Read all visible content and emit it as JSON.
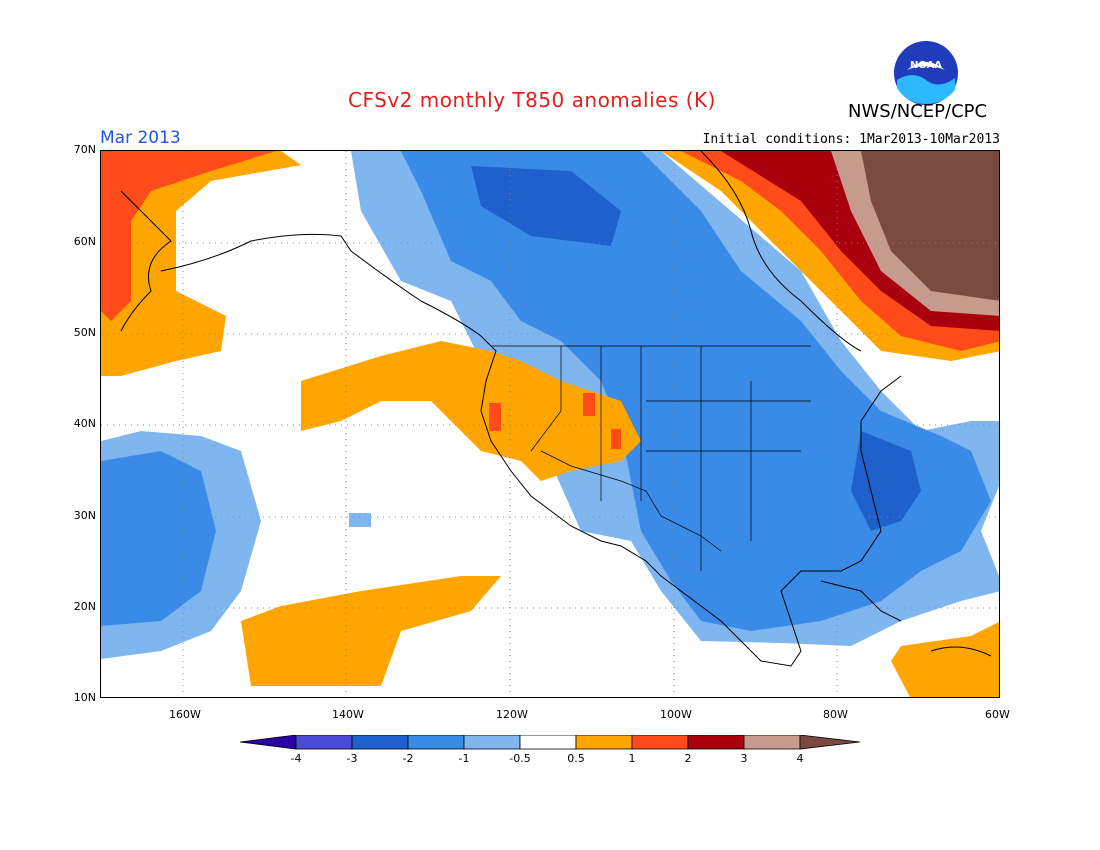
{
  "header": {
    "title": "CFSv2 monthly T850 anomalies (K)",
    "month": "Mar 2013",
    "org": "NWS/NCEP/CPC",
    "initial_conditions": "Initial conditions: 1Mar2013-10Mar2013",
    "logo_text": "NOAA"
  },
  "map": {
    "lat_labels": [
      "70N",
      "60N",
      "50N",
      "40N",
      "30N",
      "20N",
      "10N"
    ],
    "lon_labels": [
      "160W",
      "140W",
      "120W",
      "100W",
      "80W",
      "60W"
    ],
    "colors": {
      "lt_m3": "#1f1fb0",
      "m3_m2": "#1e60cc",
      "m2_m1": "#3a8ae8",
      "m1_m05": "#7fb6f0",
      "near_zero": "#ffffff",
      "p05_p1": "#ffa500",
      "p1_p2": "#ff4a1a",
      "p2_p3": "#a8000c",
      "p3_p4": "#c79a8e",
      "gt_p4": "#7a4a40"
    }
  },
  "colorbar": {
    "labels": [
      "-4",
      "-3",
      "-2",
      "-1",
      "-0.5",
      "0.5",
      "1",
      "2",
      "3",
      "4"
    ],
    "colors": [
      "#2a00a6",
      "#4a4ad6",
      "#1e60cc",
      "#3a8ae8",
      "#7fb6f0",
      "#ffffff",
      "#ffa500",
      "#ff4a1a",
      "#a8000c",
      "#c79a8e",
      "#7a4a40"
    ]
  }
}
